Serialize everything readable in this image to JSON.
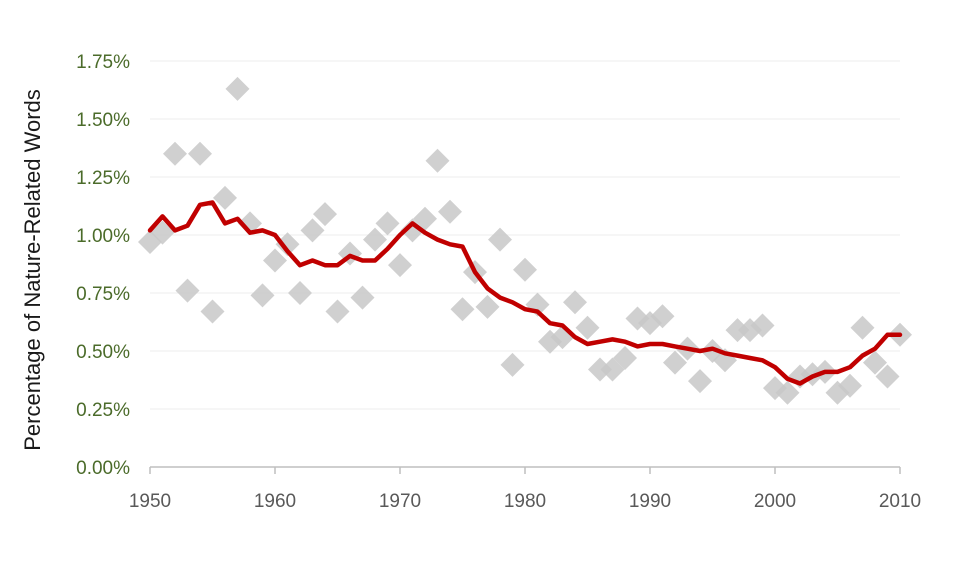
{
  "chart_data": {
    "type": "scatter",
    "title": "",
    "xlabel": "",
    "ylabel": "Percentage of Nature-Related Words",
    "xlim": [
      1950,
      2010
    ],
    "ylim": [
      0,
      1.75
    ],
    "x_ticks": [
      1950,
      1960,
      1970,
      1980,
      1990,
      2000,
      2010
    ],
    "x_tick_labels": [
      "1950",
      "1960",
      "1970",
      "1980",
      "1990",
      "2000",
      "2010"
    ],
    "y_ticks": [
      0,
      0.25,
      0.5,
      0.75,
      1.0,
      1.25,
      1.5,
      1.75
    ],
    "y_tick_labels": [
      "0.00%",
      "0.25%",
      "0.50%",
      "0.75%",
      "1.00%",
      "1.25%",
      "1.50%",
      "1.75%"
    ],
    "grid": true,
    "colors": {
      "points": "#c8c8c8",
      "trend": "#c00000",
      "ytick": "#4b6b2a",
      "xtick": "#595959",
      "grid": "#eeeeee"
    },
    "series": [
      {
        "kind": "scatter",
        "marker": "diamond",
        "x": [
          1950,
          1951,
          1952,
          1953,
          1954,
          1955,
          1956,
          1957,
          1958,
          1959,
          1960,
          1961,
          1962,
          1963,
          1964,
          1965,
          1966,
          1967,
          1968,
          1969,
          1970,
          1971,
          1972,
          1973,
          1974,
          1975,
          1976,
          1977,
          1978,
          1979,
          1980,
          1981,
          1982,
          1983,
          1984,
          1985,
          1986,
          1987,
          1988,
          1989,
          1990,
          1991,
          1992,
          1993,
          1994,
          1995,
          1996,
          1997,
          1998,
          1999,
          2000,
          2001,
          2002,
          2003,
          2004,
          2005,
          2006,
          2007,
          2008,
          2009,
          2010
        ],
        "y": [
          0.97,
          1.01,
          1.35,
          0.76,
          1.35,
          0.67,
          1.16,
          1.63,
          1.05,
          0.74,
          0.89,
          0.96,
          0.75,
          1.02,
          1.09,
          0.67,
          0.92,
          0.73,
          0.98,
          1.05,
          0.87,
          1.02,
          1.07,
          1.32,
          1.1,
          0.68,
          0.84,
          0.69,
          0.98,
          0.44,
          0.85,
          0.7,
          0.54,
          0.56,
          0.71,
          0.6,
          0.42,
          0.42,
          0.47,
          0.64,
          0.62,
          0.65,
          0.45,
          0.51,
          0.37,
          0.5,
          0.46,
          0.59,
          0.59,
          0.61,
          0.34,
          0.32,
          0.39,
          0.4,
          0.41,
          0.32,
          0.35,
          0.6,
          0.45,
          0.39,
          0.57
        ]
      },
      {
        "kind": "line",
        "x": [
          1950,
          1951,
          1952,
          1953,
          1954,
          1955,
          1956,
          1957,
          1958,
          1959,
          1960,
          1961,
          1962,
          1963,
          1964,
          1965,
          1966,
          1967,
          1968,
          1969,
          1970,
          1971,
          1972,
          1973,
          1974,
          1975,
          1976,
          1977,
          1978,
          1979,
          1980,
          1981,
          1982,
          1983,
          1984,
          1985,
          1986,
          1987,
          1988,
          1989,
          1990,
          1991,
          1992,
          1993,
          1994,
          1995,
          1996,
          1997,
          1998,
          1999,
          2000,
          2001,
          2002,
          2003,
          2004,
          2005,
          2006,
          2007,
          2008,
          2009,
          2010
        ],
        "y": [
          1.02,
          1.08,
          1.02,
          1.04,
          1.13,
          1.14,
          1.05,
          1.07,
          1.01,
          1.02,
          1.0,
          0.93,
          0.87,
          0.89,
          0.87,
          0.87,
          0.91,
          0.89,
          0.89,
          0.94,
          1.0,
          1.05,
          1.01,
          0.98,
          0.96,
          0.95,
          0.84,
          0.77,
          0.73,
          0.71,
          0.68,
          0.67,
          0.62,
          0.61,
          0.56,
          0.53,
          0.54,
          0.55,
          0.54,
          0.52,
          0.53,
          0.53,
          0.52,
          0.51,
          0.5,
          0.51,
          0.49,
          0.48,
          0.47,
          0.46,
          0.43,
          0.38,
          0.36,
          0.39,
          0.41,
          0.41,
          0.43,
          0.48,
          0.51,
          0.57,
          0.57
        ]
      }
    ]
  }
}
